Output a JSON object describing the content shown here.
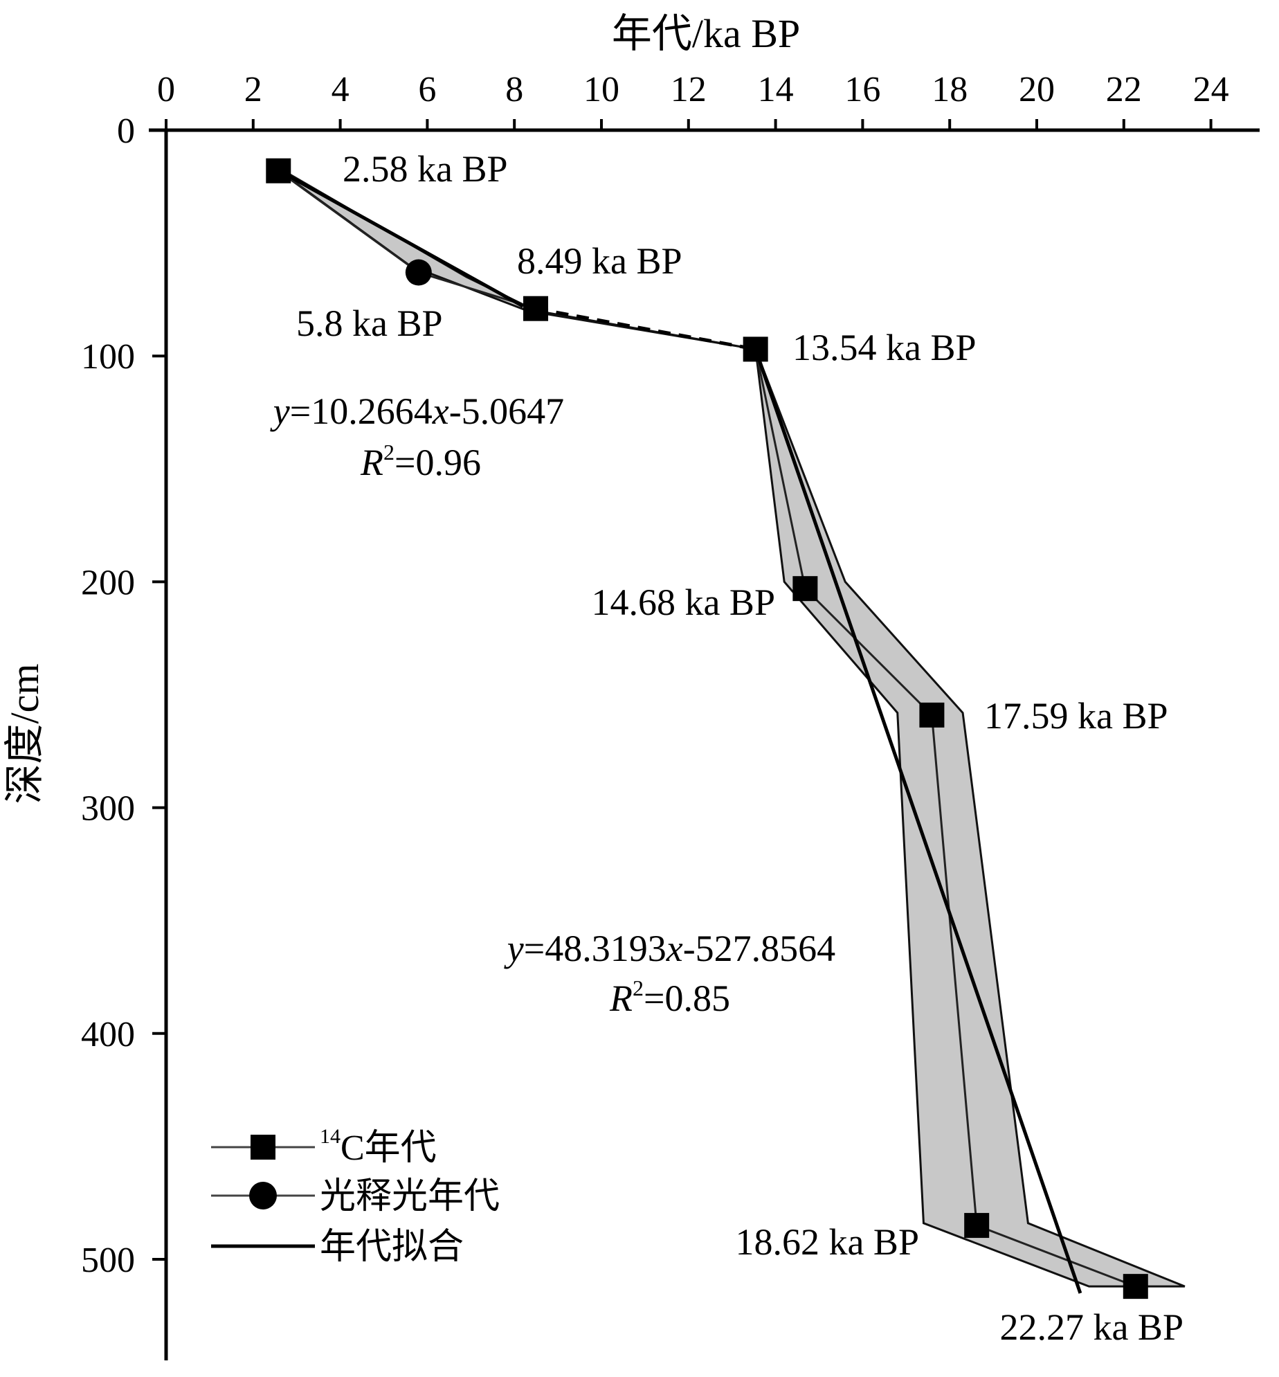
{
  "chart_data": {
    "type": "line",
    "x_axis": {
      "label": "年代/ka BP",
      "position": "top",
      "range": [
        0,
        25
      ],
      "ticks": [
        0,
        2,
        4,
        6,
        8,
        10,
        12,
        14,
        16,
        18,
        20,
        22,
        24
      ]
    },
    "y_axis": {
      "label": "深度/cm",
      "reversed": true,
      "range": [
        0,
        545
      ],
      "ticks": [
        0,
        100,
        200,
        300,
        400,
        500
      ]
    },
    "grid": false,
    "series": [
      {
        "name": "¹⁴C年代",
        "marker": "square",
        "points": [
          {
            "x": 2.58,
            "y": 18,
            "label": "2.58 ka BP"
          },
          {
            "x": 8.49,
            "y": 79,
            "label": "8.49 ka BP"
          },
          {
            "x": 13.54,
            "y": 97,
            "label": "13.54 ka BP"
          },
          {
            "x": 14.68,
            "y": 203,
            "label": "14.68 ka BP"
          },
          {
            "x": 17.59,
            "y": 259,
            "label": "17.59 ka BP"
          },
          {
            "x": 18.62,
            "y": 485,
            "label": "18.62 ka BP"
          },
          {
            "x": 22.27,
            "y": 512,
            "label": "22.27 ka BP"
          }
        ]
      },
      {
        "name": "光释光年代",
        "marker": "circle",
        "points": [
          {
            "x": 5.8,
            "y": 63,
            "label": "5.8 ka BP"
          }
        ]
      },
      {
        "name": "年代拟合",
        "marker": "none",
        "segments": [
          [
            {
              "x": 2.6,
              "y": 18
            },
            {
              "x": 8.2,
              "y": 78
            }
          ],
          [
            {
              "x": 13.54,
              "y": 97
            },
            {
              "x": 21.0,
              "y": 515
            }
          ]
        ]
      }
    ],
    "dashed_connection": [
      {
        "x": 8.49,
        "y": 79
      },
      {
        "x": 13.54,
        "y": 97
      }
    ],
    "uncertainty_band_upper": {
      "left": [
        [
          2.6,
          18
        ],
        [
          5.6,
          60
        ],
        [
          8.3,
          80
        ],
        [
          13.54,
          97
        ],
        [
          14.2,
          200
        ],
        [
          16.8,
          258
        ],
        [
          17.4,
          484
        ],
        [
          21.2,
          512
        ]
      ],
      "right": [
        [
          2.7,
          18
        ],
        [
          6.9,
          65
        ],
        [
          8.5,
          80
        ],
        [
          13.54,
          97
        ],
        [
          15.6,
          200
        ],
        [
          18.3,
          258
        ],
        [
          19.8,
          484
        ],
        [
          23.4,
          512
        ]
      ]
    },
    "annotations": [
      {
        "lines": [
          {
            "var": "y",
            "text": "=10.2664"
          },
          {
            "var2": "x",
            "text2": "-5.0647"
          }
        ],
        "r2": "=0.96"
      },
      {
        "lines": [
          {
            "var": "y",
            "text": "=48.3193"
          },
          {
            "var2": "x",
            "text2": "-527.8564"
          }
        ],
        "r2": "=0.85"
      }
    ],
    "legend": {
      "position": "bottom-left",
      "entries": [
        {
          "sup": "14",
          "text": "C年代",
          "marker": "square"
        },
        {
          "sup": "",
          "text": "光释光年代",
          "marker": "circle"
        },
        {
          "sup": "",
          "text": "年代拟合",
          "marker": "none"
        }
      ]
    }
  }
}
